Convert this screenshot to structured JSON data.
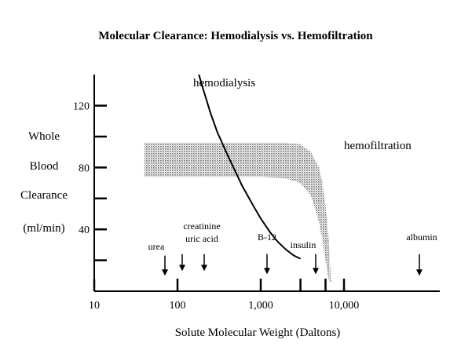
{
  "chart_data": {
    "type": "line",
    "title": "Molecular Clearance: Hemodialysis vs. Hemofiltration",
    "xlabel": "Solute Molecular Weight (Daltons)",
    "ylabel_lines": [
      "Whole",
      "Blood",
      "Clearance",
      "(ml/min)"
    ],
    "x_scale": "log",
    "xlim": [
      10,
      10000
    ],
    "ylim": [
      0,
      140
    ],
    "x_ticks": [
      {
        "value": 10,
        "label": "10"
      },
      {
        "value": 100,
        "label": "100"
      },
      {
        "value": 1000,
        "label": "1,000"
      },
      {
        "value": 10000,
        "label": "10,000"
      }
    ],
    "x_minor_ticks": [
      3000,
      6000
    ],
    "y_ticks": [
      {
        "value": 20,
        "label": ""
      },
      {
        "value": 40,
        "label": "40"
      },
      {
        "value": 60,
        "label": ""
      },
      {
        "value": 80,
        "label": "80"
      },
      {
        "value": 100,
        "label": ""
      },
      {
        "value": 120,
        "label": "120"
      }
    ],
    "series": [
      {
        "name": "hemodialysis",
        "kind": "line",
        "x": [
          160,
          200,
          250,
          300,
          400,
          500,
          600,
          800,
          1000,
          1300,
          1600,
          2000,
          2500,
          3000
        ],
        "y": [
          150,
          132,
          115,
          103,
          88,
          77,
          68,
          56,
          47,
          38,
          32,
          27,
          23,
          21
        ]
      },
      {
        "name": "hemofiltration",
        "kind": "band",
        "x": [
          40,
          100,
          500,
          1000,
          2000,
          3000,
          4000,
          5000,
          5500,
          6000,
          6500,
          7000
        ],
        "upper": [
          96,
          96,
          96,
          96,
          96,
          95,
          90,
          80,
          70,
          55,
          35,
          5
        ],
        "lower": [
          74,
          74,
          74,
          74,
          73,
          70,
          62,
          45,
          33,
          20,
          8,
          5
        ]
      }
    ],
    "annotations": [
      {
        "label": "urea",
        "x": 60,
        "label_y": 27,
        "arrow_top": 23,
        "arrow_bottom": 10
      },
      {
        "label": "creatinine",
        "x": 113,
        "label_y": 40,
        "arrow_top": 24,
        "arrow_bottom": 13
      },
      {
        "label": "uric acid",
        "x": 168,
        "label_y": 32,
        "arrow_top": 24,
        "arrow_bottom": 13
      },
      {
        "label": "B-12",
        "x": 1355,
        "label_y": 33,
        "arrow_top": 24,
        "arrow_bottom": 11
      },
      {
        "label": "insulin",
        "x": 5200,
        "label_y": 28,
        "arrow_top": 24,
        "arrow_bottom": 11
      },
      {
        "label": "albumin",
        "x": 69000,
        "label_y": 33,
        "arrow_top": 24,
        "arrow_bottom": 10
      }
    ]
  }
}
